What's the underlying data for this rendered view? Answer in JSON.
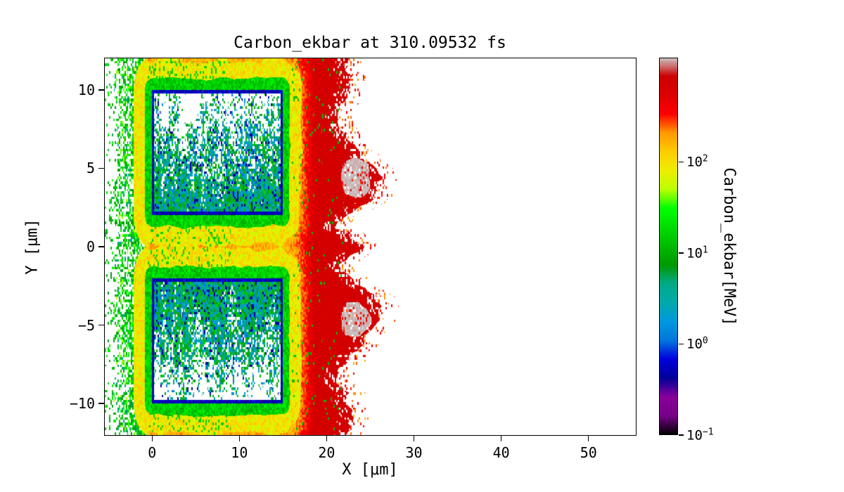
{
  "chart_data": {
    "type": "heatmap",
    "title": "Carbon_ekbar at 310.09532 fs",
    "xlabel": "X [μm]",
    "ylabel": "Y [μm]",
    "xlim": [
      -5.5,
      55.5
    ],
    "ylim": [
      -12.05,
      12.05
    ],
    "xticks": [
      0,
      10,
      20,
      30,
      40,
      50
    ],
    "xtick_labels": [
      "0",
      "10",
      "20",
      "30",
      "40",
      "50"
    ],
    "yticks": [
      -10,
      -5,
      0,
      5,
      10
    ],
    "ytick_labels": [
      "−10",
      "−5",
      "0",
      "5",
      "10"
    ],
    "grid": false,
    "background": "#ffffff",
    "colorbar": {
      "label": "Carbon_ekbar[MeV]",
      "position": "right",
      "scale": "log",
      "vmin": 0.1,
      "vmax": 1400,
      "ticks": [
        0.1,
        1,
        10,
        100
      ],
      "tick_labels": [
        {
          "mantissa": "10",
          "exponent": "−1"
        },
        {
          "mantissa": "10",
          "exponent": "0"
        },
        {
          "mantissa": "10",
          "exponent": "1"
        },
        {
          "mantissa": "10",
          "exponent": "2"
        }
      ]
    },
    "colormap": {
      "name": "nipy_spectral",
      "stops": [
        {
          "p": 0.0,
          "c": "#000000"
        },
        {
          "p": 0.05,
          "c": "#770088"
        },
        {
          "p": 0.1,
          "c": "#880099"
        },
        {
          "p": 0.15,
          "c": "#000099"
        },
        {
          "p": 0.2,
          "c": "#0000dd"
        },
        {
          "p": 0.25,
          "c": "#0077dd"
        },
        {
          "p": 0.3,
          "c": "#0099dd"
        },
        {
          "p": 0.35,
          "c": "#00aaaa"
        },
        {
          "p": 0.4,
          "c": "#00aa88"
        },
        {
          "p": 0.45,
          "c": "#009900"
        },
        {
          "p": 0.5,
          "c": "#00bb00"
        },
        {
          "p": 0.55,
          "c": "#00dd00"
        },
        {
          "p": 0.6,
          "c": "#00ff00"
        },
        {
          "p": 0.65,
          "c": "#bbff00"
        },
        {
          "p": 0.7,
          "c": "#eeee00"
        },
        {
          "p": 0.75,
          "c": "#ffcc00"
        },
        {
          "p": 0.8,
          "c": "#ff9900"
        },
        {
          "p": 0.85,
          "c": "#ff0000"
        },
        {
          "p": 0.9,
          "c": "#dd0000"
        },
        {
          "p": 0.95,
          "c": "#cc0000"
        },
        {
          "p": 1.0,
          "c": "#cccccc"
        }
      ]
    },
    "features": {
      "description": "Particle-in-cell simulation snapshot: two cold target slabs (x 0–15 μm, y ±2–10 μm) with dark-blue boundaries and low-energy cyan/blue speckled interiors (partially empty), wrapped by green→yellow→orange energy shells; a hot red plasma plume extends to x≈26 μm with two gray hottest spots near (23.3, ±4.5) μm; scattered green/yellow speckle to the left of the targets; white (no data) beyond the ragged plume edge and left of x≈−5 μm.",
      "targets_um": [
        {
          "x0": 0,
          "x1": 15,
          "y0": 2,
          "y1": 10
        },
        {
          "x0": 0,
          "x1": 15,
          "y0": -10,
          "y1": -2
        }
      ],
      "hot_spots": [
        {
          "x": 23.3,
          "y": 4.3,
          "rx": 1.8,
          "ry": 1.3,
          "value_mev": 1350
        },
        {
          "x": 23.3,
          "y": -4.6,
          "rx": 1.8,
          "ry": 1.3,
          "value_mev": 1350
        }
      ],
      "plume_right_edge_um": 26,
      "left_data_edge_um": -5
    },
    "procedural": {
      "cell_um": 0.16,
      "frame_thickness_um": 0.24,
      "frame_log10": -0.45,
      "interior": {
        "fill_base": 1.2,
        "fill_falloff_um": 7.5,
        "log10_base": -0.05,
        "log10_spread": 1.3
      },
      "shell_green": {
        "d": 0.75,
        "log10": 1.2,
        "spread": 0.5
      },
      "shell_yellow": {
        "d": 2.0,
        "log10": 1.95,
        "spread": 0.45
      },
      "plume": {
        "log10_base": 2.25,
        "d_gain": 0.45,
        "x_start": 16.5,
        "x_span": 3.5,
        "x_gain": 0.4,
        "log10_cap": 2.85
      },
      "left_zone": {
        "hole_base": 0.3,
        "hole_gain": 0.18,
        "log10": 1.15,
        "spread": 1.1
      },
      "right_edge": {
        "base": 22.5,
        "bump": 3.5,
        "bump_y": 4.2,
        "bump_w": 2.2,
        "notch": 1.8,
        "notch_y": 1.6,
        "notch_w": 0.9,
        "nose": 1.5,
        "nose_w": 0.7,
        "dip": 1.3,
        "dip_y": 8.2,
        "dip_w": 1.4,
        "noise": 2.5
      },
      "left_edge": {
        "base": -4.3,
        "noise": 2.2
      },
      "hot_spot_log10": 3.13
    }
  }
}
